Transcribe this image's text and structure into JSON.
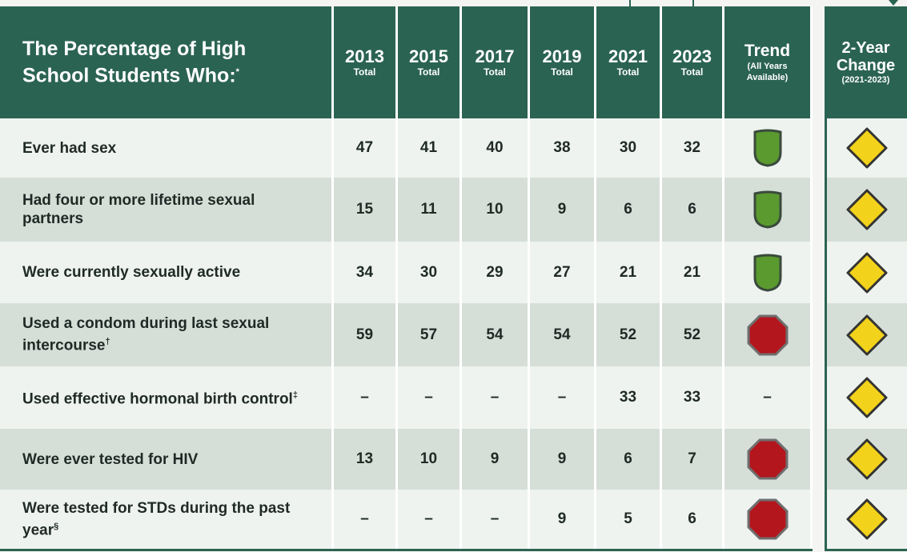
{
  "table": {
    "header": {
      "title": "The Percentage of High School Students Who:",
      "title_mark": "*",
      "years": [
        {
          "year": "2013",
          "sub": "Total"
        },
        {
          "year": "2015",
          "sub": "Total"
        },
        {
          "year": "2017",
          "sub": "Total"
        },
        {
          "year": "2019",
          "sub": "Total"
        },
        {
          "year": "2021",
          "sub": "Total"
        },
        {
          "year": "2023",
          "sub": "Total"
        }
      ],
      "trend": {
        "title": "Trend",
        "sub": "(All Years Available)"
      },
      "change": {
        "title": "2-Year Change",
        "sub": "(2021-2023)"
      }
    },
    "rows": [
      {
        "label": "Ever had sex",
        "mark": null,
        "values": [
          47,
          41,
          40,
          38,
          30,
          32
        ],
        "trend": "shield",
        "change": "diamond"
      },
      {
        "label": "Had four or more lifetime sexual partners",
        "mark": null,
        "values": [
          15,
          11,
          10,
          9,
          6,
          6
        ],
        "trend": "shield",
        "change": "diamond"
      },
      {
        "label": "Were currently sexually active",
        "mark": null,
        "values": [
          34,
          30,
          29,
          27,
          21,
          21
        ],
        "trend": "shield",
        "change": "diamond"
      },
      {
        "label": "Used a condom during last sexual intercourse",
        "mark": "†",
        "values": [
          59,
          57,
          54,
          54,
          52,
          52
        ],
        "trend": "stop",
        "change": "diamond"
      },
      {
        "label": "Used effective hormonal birth control",
        "mark": "‡",
        "values": [
          "–",
          "–",
          "–",
          "–",
          33,
          33
        ],
        "trend": "–",
        "change": "diamond"
      },
      {
        "label": "Were ever tested for HIV",
        "mark": null,
        "values": [
          13,
          10,
          9,
          9,
          6,
          7
        ],
        "trend": "stop",
        "change": "diamond"
      },
      {
        "label": "Were tested for STDs during the past year",
        "mark": "§",
        "values": [
          "–",
          "–",
          "–",
          9,
          5,
          6
        ],
        "trend": "stop",
        "change": "diamond"
      }
    ]
  }
}
